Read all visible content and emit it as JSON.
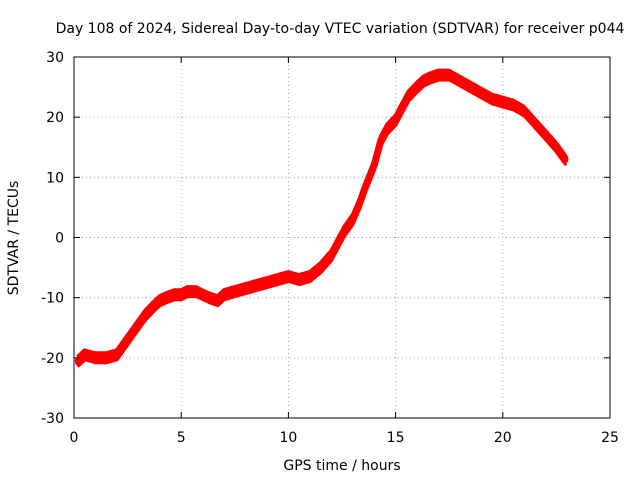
{
  "chart_data": {
    "type": "scatter",
    "title": "Day 108 of 2024, Sidereal Day-to-day VTEC variation (SDTVAR) for receiver p044",
    "xlabel": "GPS time / hours",
    "ylabel": "SDTVAR / TECUs",
    "xlim": [
      0,
      25
    ],
    "ylim": [
      -30,
      30
    ],
    "xticks": [
      0,
      5,
      10,
      15,
      20,
      25
    ],
    "yticks": [
      -30,
      -20,
      -10,
      0,
      10,
      20,
      30
    ],
    "xtick_labels": [
      "0",
      "5",
      "10",
      "15",
      "20",
      "25"
    ],
    "ytick_labels": [
      "-30",
      "-20",
      "-10",
      "0",
      "10",
      "20",
      "30"
    ],
    "grid": true,
    "color": "#ff0000",
    "series": [
      {
        "name": "SDTVAR",
        "x": [
          0.2,
          0.5,
          1.0,
          1.5,
          2.0,
          2.3,
          2.7,
          3.0,
          3.3,
          3.7,
          4.0,
          4.3,
          4.7,
          5.0,
          5.3,
          5.7,
          6.0,
          6.3,
          6.7,
          7.0,
          7.5,
          8.0,
          8.5,
          9.0,
          9.5,
          10.0,
          10.5,
          11.0,
          11.5,
          12.0,
          12.3,
          12.6,
          13.0,
          13.3,
          13.6,
          14.0,
          14.3,
          14.6,
          15.0,
          15.3,
          15.6,
          16.0,
          16.3,
          16.6,
          17.0,
          17.5,
          18.0,
          18.5,
          19.0,
          19.5,
          20.0,
          20.5,
          21.0,
          21.5,
          22.0,
          22.5,
          22.9
        ],
        "y": [
          -20.5,
          -19.5,
          -20.0,
          -20.0,
          -19.5,
          -18.0,
          -16.0,
          -14.5,
          -13.0,
          -11.5,
          -10.5,
          -10.0,
          -9.5,
          -9.5,
          -9.0,
          -9.0,
          -9.5,
          -10.0,
          -10.5,
          -9.5,
          -9.0,
          -8.5,
          -8.0,
          -7.5,
          -7.0,
          -6.5,
          -7.0,
          -6.5,
          -5.0,
          -3.0,
          -1.0,
          1.0,
          3.0,
          5.5,
          8.5,
          12.0,
          16.0,
          18.0,
          19.5,
          21.5,
          23.5,
          25.0,
          26.0,
          26.5,
          27.0,
          27.0,
          26.0,
          25.0,
          24.0,
          23.0,
          22.5,
          22.0,
          21.0,
          19.0,
          17.0,
          15.0,
          13.0
        ]
      }
    ]
  }
}
